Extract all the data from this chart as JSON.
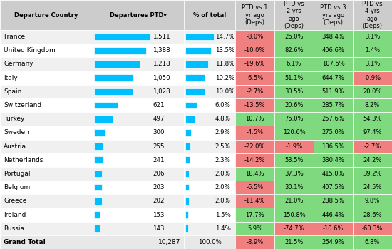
{
  "headers": [
    "Departure Country",
    "Departures PTD▾",
    "% of total",
    "PTD vs 1\nyr ago\n(Deps)",
    "PTD vs\n2 yrs\nago\n(Deps)",
    "PTD vs 3\nyrs ago\n(Deps)",
    "PTD vs\n4 yrs\nago\n(Deps)"
  ],
  "rows": [
    [
      "France",
      1511,
      "14.7%",
      "-8.0%",
      "26.0%",
      "348.4%",
      "3.1%"
    ],
    [
      "United Kingdom",
      1388,
      "13.5%",
      "-10.0%",
      "82.6%",
      "406.6%",
      "1.4%"
    ],
    [
      "Germany",
      1218,
      "11.8%",
      "-19.6%",
      "6.1%",
      "107.5%",
      "3.1%"
    ],
    [
      "Italy",
      1050,
      "10.2%",
      "-6.5%",
      "51.1%",
      "644.7%",
      "-0.9%"
    ],
    [
      "Spain",
      1028,
      "10.0%",
      "-2.7%",
      "30.5%",
      "511.9%",
      "20.0%"
    ],
    [
      "Switzerland",
      621,
      "6.0%",
      "-13.5%",
      "20.6%",
      "285.7%",
      "8.2%"
    ],
    [
      "Turkey",
      497,
      "4.8%",
      "10.7%",
      "75.0%",
      "257.6%",
      "54.3%"
    ],
    [
      "Sweden",
      300,
      "2.9%",
      "-4.5%",
      "120.6%",
      "275.0%",
      "97.4%"
    ],
    [
      "Austria",
      255,
      "2.5%",
      "-22.0%",
      "-1.9%",
      "186.5%",
      "-2.7%"
    ],
    [
      "Netherlands",
      241,
      "2.3%",
      "-14.2%",
      "53.5%",
      "330.4%",
      "24.2%"
    ],
    [
      "Portugal",
      206,
      "2.0%",
      "18.4%",
      "37.3%",
      "415.0%",
      "39.2%"
    ],
    [
      "Belgium",
      203,
      "2.0%",
      "-6.5%",
      "30.1%",
      "407.5%",
      "24.5%"
    ],
    [
      "Greece",
      202,
      "2.0%",
      "-11.4%",
      "21.0%",
      "288.5%",
      "9.8%"
    ],
    [
      "Ireland",
      153,
      "1.5%",
      "17.7%",
      "150.8%",
      "446.4%",
      "28.6%"
    ],
    [
      "Russia",
      143,
      "1.4%",
      "5.9%",
      "-74.7%",
      "-10.6%",
      "-60.3%"
    ]
  ],
  "grand_total": [
    "Grand Total",
    "10,287",
    "100.0%",
    "-8.9%",
    "21.5%",
    "264.9%",
    "6.8%"
  ],
  "max_departures": 1511,
  "bar_color": "#00BFFF",
  "header_bg": "#CCCCCC",
  "row_bg_light": "#F0F0F0",
  "row_bg_white": "#FFFFFF",
  "green_bg": "#7FD97F",
  "red_bg": "#F08080",
  "grand_total_bg": "#E8E8E8",
  "fig_width": 5.5,
  "fig_height": 3.49,
  "dpi": 100
}
